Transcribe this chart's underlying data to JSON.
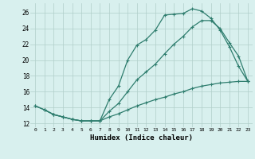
{
  "line1_x": [
    0,
    1,
    2,
    3,
    4,
    5,
    6,
    7,
    8,
    9,
    10,
    11,
    12,
    13,
    14,
    15,
    16,
    17,
    18,
    19,
    20,
    21,
    22,
    23
  ],
  "line1_y": [
    14.2,
    13.7,
    13.1,
    12.8,
    12.5,
    12.3,
    12.3,
    12.3,
    15.0,
    16.7,
    20.0,
    21.9,
    22.6,
    23.8,
    25.7,
    25.8,
    25.9,
    26.5,
    26.2,
    25.3,
    23.8,
    21.7,
    19.2,
    17.3
  ],
  "line2_x": [
    0,
    1,
    2,
    3,
    4,
    5,
    6,
    7,
    8,
    9,
    10,
    11,
    12,
    13,
    14,
    15,
    16,
    17,
    18,
    19,
    20,
    21,
    22,
    23
  ],
  "line2_y": [
    14.2,
    13.7,
    13.1,
    12.8,
    12.5,
    12.3,
    12.3,
    12.3,
    13.5,
    14.5,
    16.0,
    17.5,
    18.5,
    19.5,
    20.8,
    22.0,
    23.0,
    24.2,
    25.0,
    25.0,
    24.0,
    22.2,
    20.5,
    17.3
  ],
  "line3_x": [
    1,
    2,
    3,
    4,
    5,
    6,
    7,
    8,
    9,
    10,
    11,
    12,
    13,
    14,
    15,
    16,
    17,
    18,
    19,
    20,
    21,
    22,
    23
  ],
  "line3_y": [
    13.7,
    13.1,
    12.8,
    12.5,
    12.3,
    12.3,
    12.3,
    12.8,
    13.2,
    13.7,
    14.2,
    14.6,
    15.0,
    15.3,
    15.7,
    16.0,
    16.4,
    16.7,
    16.9,
    17.1,
    17.2,
    17.3,
    17.3
  ],
  "color": "#2e7d6e",
  "bg_color": "#d8f0ee",
  "grid_color": "#b0ceca",
  "xlabel": "Humidex (Indice chaleur)",
  "ylim": [
    11.5,
    27.2
  ],
  "xlim": [
    -0.5,
    23.5
  ],
  "yticks": [
    12,
    14,
    16,
    18,
    20,
    22,
    24,
    26
  ],
  "xticks": [
    0,
    1,
    2,
    3,
    4,
    5,
    6,
    7,
    8,
    9,
    10,
    11,
    12,
    13,
    14,
    15,
    16,
    17,
    18,
    19,
    20,
    21,
    22,
    23
  ],
  "xtick_labels": [
    "0",
    "1",
    "2",
    "3",
    "4",
    "5",
    "6",
    "7",
    "8",
    "9",
    "10",
    "11",
    "12",
    "13",
    "14",
    "15",
    "16",
    "17",
    "18",
    "19",
    "20",
    "21",
    "22",
    "23"
  ],
  "marker": "+",
  "markersize": 3.5,
  "linewidth": 0.9
}
